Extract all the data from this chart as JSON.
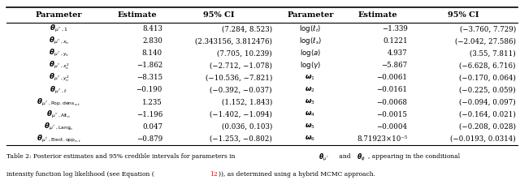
{
  "col_headers": [
    "Parameter",
    "Estimate",
    "95% CI",
    "Parameter",
    "Estimate",
    "95% CI"
  ],
  "param_left": [
    "$\\boldsymbol{\\theta}_{\\mu^*,1}$",
    "$\\boldsymbol{\\theta}_{\\mu^*,x_n}$",
    "$\\boldsymbol{\\theta}_{\\mu^*,y_n}$",
    "$\\boldsymbol{\\theta}_{\\mu^*,x_n^2}$",
    "$\\boldsymbol{\\theta}_{\\mu^*,y_n^2}$",
    "$\\boldsymbol{\\theta}_{\\mu^*,t}$",
    "$\\boldsymbol{\\theta}_{\\mu^*,\\mathrm{Pop.dens}_{n,t}}$",
    "$\\boldsymbol{\\theta}_{\\mu^*,\\mathrm{Alt}_n}$",
    "$\\boldsymbol{\\theta}_{\\mu^*,\\mathrm{Lang}_n}$",
    "$\\boldsymbol{\\theta}_{\\mu^*,\\mathrm{Elect.opp}_{n,t}}$"
  ],
  "estimate_left": [
    "8.413",
    "2.830",
    "8.140",
    "−1.862",
    "−8.315",
    "−0.190",
    "1.235",
    "−1.196",
    "0.047",
    "−0.879"
  ],
  "ci_left": [
    "(7.284, 8.523)",
    "(2.343156, 3.812476)",
    "(7.705, 10.239)",
    "(−2.712, −1.078)",
    "(−10.536, −7.821)",
    "(−0.392, −0.037)",
    "(1.152, 1.843)",
    "(−1.402, −1.094)",
    "(0.036, 0.103)",
    "(−1.253, −0.802)"
  ],
  "param_right": [
    "$\\log(\\ell_t)$",
    "$\\log(\\ell_s)$",
    "$\\log(a)$",
    "$\\log(\\gamma)$",
    "$\\boldsymbol{\\omega}_1$",
    "$\\boldsymbol{\\omega}_2$",
    "$\\boldsymbol{\\omega}_3$",
    "$\\boldsymbol{\\omega}_4$",
    "$\\boldsymbol{\\omega}_5$",
    "$\\boldsymbol{\\omega}_6$"
  ],
  "estimate_right": [
    "−1.339",
    "0.1221",
    "4.937",
    "−5.867",
    "−0.0061",
    "−0.0161",
    "−0.0068",
    "−0.0015",
    "−0.0004",
    "8.71923×10⁻⁵"
  ],
  "ci_right": [
    "(−3.760, 7.729)",
    "(−2.042, 27.586)",
    "(3.55, 7.811)",
    "(−6.628, 6.716)",
    "(−0.170, 0.064)",
    "(−0.225, 0.059)",
    "(−0.094, 0.097)",
    "(−0.164, 0.021)",
    "(−0.208, 0.028)",
    "(−0.0193, 0.0314)"
  ],
  "bg_color": "#ffffff",
  "fig_width": 6.4,
  "fig_height": 2.22,
  "dpi": 100
}
